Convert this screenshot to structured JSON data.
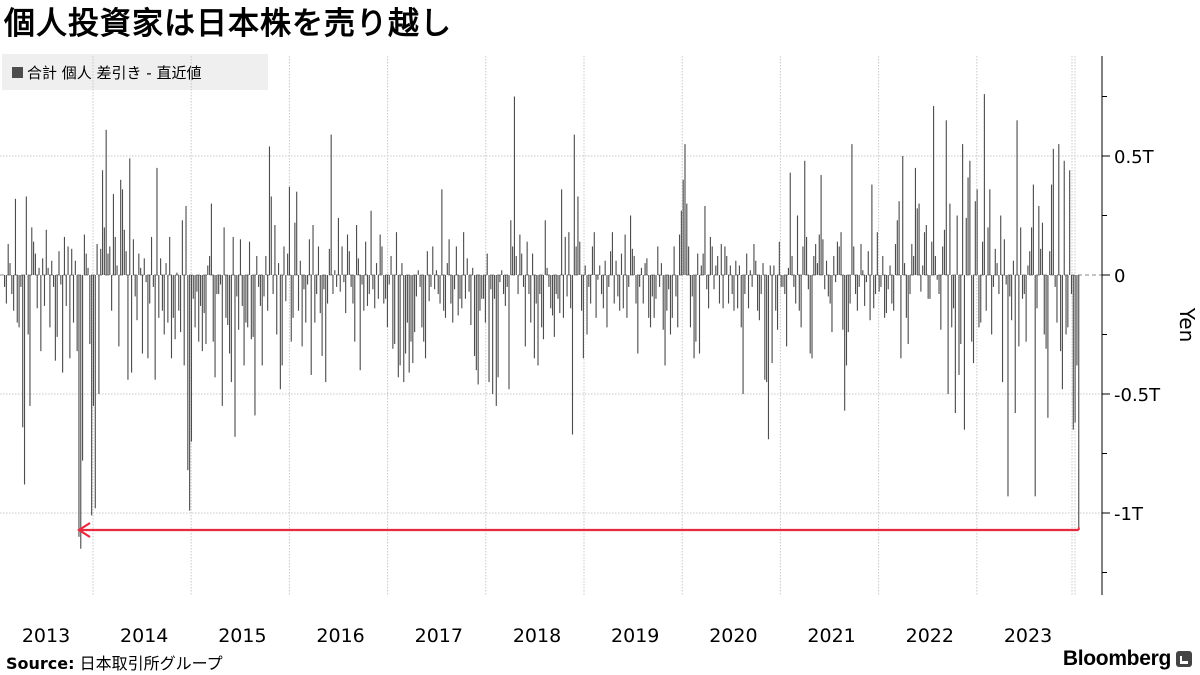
{
  "title": "個人投資家は日本株を売り越し",
  "legend": {
    "label": "合計 個人 差引き - 直近値",
    "color": "#4d4d4d"
  },
  "source": {
    "label": "Source:",
    "text": "日本取引所グループ"
  },
  "brand": {
    "name": "Bloomberg",
    "icon": "bloomberg-terminal-icon"
  },
  "colors": {
    "bar": "#4d4d4d",
    "arrow": "#e8293f",
    "grid": "#c8c8c8",
    "axis": "#000000"
  },
  "chart_data": {
    "type": "bar",
    "title": "個人投資家は日本株を売り越し",
    "ylabel": "Yen",
    "ylim": [
      -1.25,
      0.9
    ],
    "y_ticks": [
      {
        "value": 0.5,
        "label": "0.5T"
      },
      {
        "value": 0,
        "label": "0"
      },
      {
        "value": -0.5,
        "label": "-0.5T"
      },
      {
        "value": -1,
        "label": "-1T"
      }
    ],
    "x_ticks": [
      "2013",
      "2014",
      "2015",
      "2016",
      "2017",
      "2018",
      "2019",
      "2020",
      "2021",
      "2022",
      "2023"
    ],
    "x_range": [
      "2013-01",
      "2023-12"
    ],
    "bar_interval": "weekly",
    "series": [
      {
        "name": "合計 個人 差引き - 直近値",
        "values": [
          -0.05,
          -0.12,
          0.13,
          0.05,
          -0.08,
          -0.15,
          0.32,
          -0.2,
          -0.22,
          -0.05,
          -0.64,
          -0.88,
          0.33,
          -0.25,
          -0.55,
          0.2,
          0.14,
          0.09,
          -0.14,
          0.03,
          -0.32,
          0.07,
          -0.13,
          0.19,
          0.03,
          -0.22,
          0.06,
          -0.05,
          -0.36,
          -0.26,
          0.1,
          -0.04,
          -0.41,
          0.16,
          -0.13,
          0.12,
          -0.35,
          0.11,
          -0.2,
          0.06,
          -0.32,
          -1.1,
          -1.15,
          -0.78,
          0.17,
          0.09,
          0.03,
          -0.29,
          -1.01,
          -0.55,
          -0.98,
          0.13,
          -0.5,
          0.11,
          0.44,
          0.2,
          0.61,
          0.09,
          0.12,
          -0.15,
          0.34,
          0.16,
          0.04,
          -0.3,
          0.4,
          0.36,
          0.19,
          0.1,
          -0.44,
          0.49,
          -0.41,
          0.15,
          -0.09,
          -0.19,
          0.09,
          0.03,
          -0.33,
          0.07,
          -0.03,
          -0.35,
          -0.12,
          0.16,
          -0.05,
          -0.44,
          0.45,
          -0.18,
          0.07,
          -0.15,
          -0.25,
          0.05,
          -0.2,
          0.16,
          -0.35,
          -0.18,
          -0.27,
          0.01,
          -0.15,
          -0.24,
          0.23,
          -0.38,
          0.29,
          -0.82,
          -0.99,
          -0.7,
          -0.1,
          -0.22,
          -0.07,
          -0.28,
          -0.13,
          -0.32,
          -0.16,
          -0.29,
          0.04,
          0.08,
          0.3,
          -0.28,
          -0.43,
          -0.08,
          -0.08,
          -0.04,
          -0.55,
          0.2,
          -0.18,
          -0.21,
          -0.33,
          -0.45,
          0.16,
          -0.68,
          -0.09,
          -0.23,
          0.15,
          -0.13,
          -0.38,
          -0.2,
          -0.22,
          0.14,
          -0.27,
          -0.26,
          -0.59,
          0.08,
          -0.05,
          -0.13,
          -0.38,
          -0.09,
          0.08,
          -0.15,
          0.54,
          0.33,
          -0.08,
          0.21,
          -0.25,
          0.05,
          -0.48,
          -0.38,
          0.12,
          -0.11,
          0.09,
          0.37,
          -0.28,
          -0.18,
          0.22,
          0.35,
          -0.15,
          0.06,
          -0.3,
          -0.06,
          -0.2,
          -0.04,
          0.15,
          -0.42,
          0.21,
          -0.2,
          -0.08,
          0.12,
          -0.16,
          -0.34,
          -0.06,
          -0.45,
          -0.12,
          0.11,
          0.59,
          -0.08,
          0.02,
          -0.05,
          0.24,
          -0.07,
          0.12,
          -0.03,
          -0.16,
          0.17,
          0.1,
          -0.05,
          -0.12,
          -0.28,
          0.21,
          0.07,
          -0.4,
          -0.04,
          -0.15,
          0.14,
          -0.13,
          -0.08,
          0.27,
          -0.06,
          -0.14,
          0.05,
          -0.1,
          0.17,
          0.12,
          -0.12,
          -0.1,
          -0.22,
          -0.04,
          0.08,
          -0.31,
          -0.29,
          0.18,
          -0.43,
          -0.38,
          0.05,
          -0.45,
          -0.33,
          -0.2,
          -0.41,
          -0.28,
          -0.37,
          -0.24,
          -0.09,
          0.02,
          -0.05,
          -0.22,
          -0.28,
          -0.35,
          0.1,
          -0.11,
          -0.05,
          0.12,
          -0.06,
          0.02,
          -0.08,
          -0.12,
          0.36,
          -0.15,
          -0.18,
          0.05,
          0.15,
          -0.12,
          -0.2,
          -0.06,
          0.12,
          -0.17,
          -0.1,
          -0.14,
          0.18,
          -0.1,
          0.07,
          -0.07,
          -0.21,
          0.03,
          -0.34,
          -0.4,
          -0.46,
          -0.15,
          -0.1,
          -0.1,
          -0.2,
          0.09,
          -0.45,
          -0.06,
          -0.5,
          -0.1,
          -0.55,
          -0.43,
          -0.03,
          0.02,
          -0.08,
          -0.13,
          -0.05,
          -0.48,
          0.23,
          0.12,
          0.75,
          0.08,
          -0.08,
          0.17,
          0.09,
          -0.05,
          -0.3,
          0.14,
          -0.08,
          -0.2,
          0.09,
          -0.35,
          -0.12,
          -0.38,
          -0.08,
          -0.22,
          -0.27,
          0.23,
          0.03,
          -0.05,
          -0.14,
          -0.17,
          -0.26,
          -0.08,
          -0.1,
          -0.16,
          0.36,
          -0.18,
          0.16,
          -0.09,
          0.18,
          -0.14,
          -0.67,
          0.59,
          0.12,
          0.33,
          0.14,
          -0.15,
          -0.35,
          0.04,
          -0.25,
          -0.05,
          -0.12,
          0.12,
          0.18,
          -0.18,
          -0.02,
          0.04,
          -0.08,
          -0.14,
          0.06,
          -0.22,
          -0.05,
          0.1,
          0.18,
          -0.12,
          0.06,
          -0.09,
          -0.15,
          0.09,
          -0.14,
          0.17,
          -0.18,
          -0.05,
          0.25,
          0.11,
          0.08,
          -0.12,
          -0.33,
          -0.05,
          0.03,
          -0.12,
          0.05,
          0.07,
          -0.18,
          -0.22,
          -0.09,
          -0.18,
          -0.1,
          0.12,
          -0.05,
          0.05,
          -0.23,
          -0.38,
          -0.15,
          -0.06,
          -0.25,
          -0.18,
          0.12,
          -0.09,
          -0.22,
          0.17,
          0.27,
          0.4,
          0.55,
          0.3,
          0.12,
          -0.22,
          -0.09,
          -0.35,
          -0.28,
          0.09,
          -0.33,
          0.04,
          0.09,
          0.29,
          -0.06,
          -0.14,
          0.16,
          0.12,
          -0.06,
          0.04,
          0.08,
          -0.12,
          0.13,
          -0.14,
          0.12,
          0.08,
          -0.12,
          0.04,
          -0.08,
          -0.15,
          0.06,
          -0.14,
          0.04,
          -0.22,
          -0.5,
          -0.08,
          0.09,
          -0.14,
          0.02,
          -0.05,
          0.13,
          0.06,
          -0.15,
          -0.19,
          -0.08,
          0.05,
          -0.44,
          -0.45,
          -0.69,
          0.04,
          -0.37,
          0.04,
          -0.15,
          -0.23,
          0.14,
          -0.05,
          -0.05,
          -0.08,
          -0.3,
          0.03,
          0.43,
          0.08,
          -0.05,
          -0.12,
          0.25,
          -0.15,
          -0.22,
          0.12,
          0.48,
          0.16,
          -0.06,
          -0.33,
          -0.35,
          0.08,
          0.13,
          0.05,
          0.17,
          0.42,
          0.15,
          -0.06,
          0.06,
          -0.09,
          -0.12,
          -0.24,
          0.08,
          -0.03,
          0.14,
          0.12,
          0.18,
          -0.23,
          -0.57,
          -0.38,
          -0.24,
          -0.12,
          0.55,
          0.12,
          -0.08,
          -0.15,
          -0.05,
          0.13,
          0.02,
          -0.13,
          -0.03,
          0.1,
          -0.19,
          0.38,
          -0.14,
          -0.08,
          0.18,
          -0.07,
          -0.05,
          0.08,
          -0.18,
          -0.16,
          -0.06,
          0.04,
          -0.12,
          -0.15,
          0.13,
          0.23,
          0.31,
          -0.35,
          0.5,
          0.05,
          -0.18,
          -0.29,
          -0.08,
          0.13,
          0.08,
          0.45,
          0.28,
          0.3,
          -0.07,
          0.04,
          0.18,
          0.21,
          -0.1,
          -0.1,
          0.14,
          0.71,
          0.08,
          -0.02,
          -0.08,
          -0.23,
          0.12,
          0.19,
          0.65,
          -0.5,
          0.3,
          -0.22,
          -0.14,
          -0.58,
          0.25,
          -0.42,
          -0.29,
          0.55,
          -0.65,
          0.24,
          0.41,
          0.48,
          -0.28,
          -0.37,
          0.31,
          0.36,
          -0.22,
          -0.2,
          0.14,
          0.76,
          -0.15,
          0.2,
          0.36,
          -0.25,
          -0.05,
          0.11,
          0.05,
          -0.08,
          0.25,
          -0.45,
          0.15,
          -0.04,
          -0.93,
          -0.09,
          -0.19,
          0.06,
          -0.58,
          0.65,
          -0.3,
          0.2,
          -0.1,
          -0.08,
          -0.28,
          0.04,
          0.1,
          0.2,
          0.38,
          -0.93,
          -0.14,
          0.29,
          0.11,
          0.22,
          -0.25,
          -0.31,
          -0.6,
          0.1,
          0.38,
          0.53,
          -0.05,
          -0.2,
          0.55,
          -0.32,
          -0.48,
          0.48,
          -0.25,
          -0.22,
          0.44,
          -0.08,
          -0.65,
          -0.62,
          -0.38,
          -1.06
        ]
      }
    ],
    "annotations": [
      {
        "type": "arrow",
        "from_value": -1.06,
        "to": "2013-09",
        "description": "latest value compared to 2013 low"
      }
    ]
  }
}
